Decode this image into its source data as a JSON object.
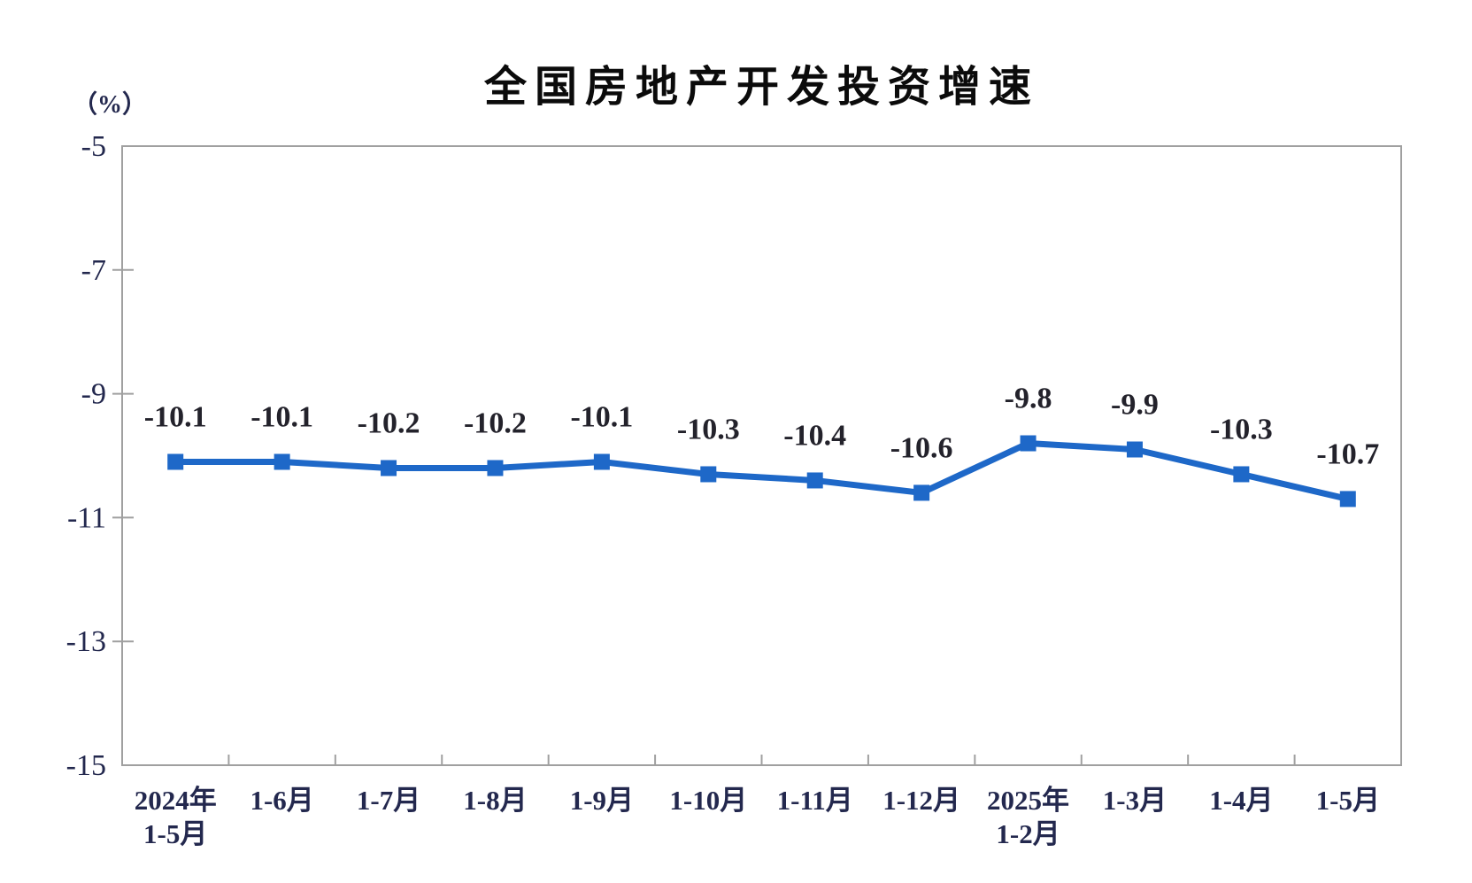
{
  "chart_data": {
    "type": "line",
    "title": "全国房地产开发投资增速",
    "ylabel": "（%）",
    "xlabel": "",
    "categories": [
      "2024年\n1-5月",
      "1-6月",
      "1-7月",
      "1-8月",
      "1-9月",
      "1-10月",
      "1-11月",
      "1-12月",
      "2025年\n1-2月",
      "1-3月",
      "1-4月",
      "1-5月"
    ],
    "values": [
      -10.1,
      -10.1,
      -10.2,
      -10.2,
      -10.1,
      -10.3,
      -10.4,
      -10.6,
      -9.8,
      -9.9,
      -10.3,
      -10.7
    ],
    "data_labels": [
      "-10.1",
      "-10.1",
      "-10.2",
      "-10.2",
      "-10.1",
      "-10.3",
      "-10.4",
      "-10.6",
      "-9.8",
      "-9.9",
      "-10.3",
      "-10.7"
    ],
    "ylim": [
      -15,
      -5
    ],
    "yticks": [
      -5,
      -7,
      -9,
      -11,
      -13,
      -15
    ],
    "ytick_labels": [
      "-5",
      "-7",
      "-9",
      "-11",
      "-13",
      "-15"
    ],
    "grid": false,
    "legend": "none",
    "marker": "square",
    "colors": {
      "line": "#1e68c8",
      "marker": "#1e68c8",
      "axis": "#a0a0a0",
      "axis_label_text": "#23284e",
      "data_label_text": "#23222b",
      "title_text": "#0b0b0b"
    }
  }
}
